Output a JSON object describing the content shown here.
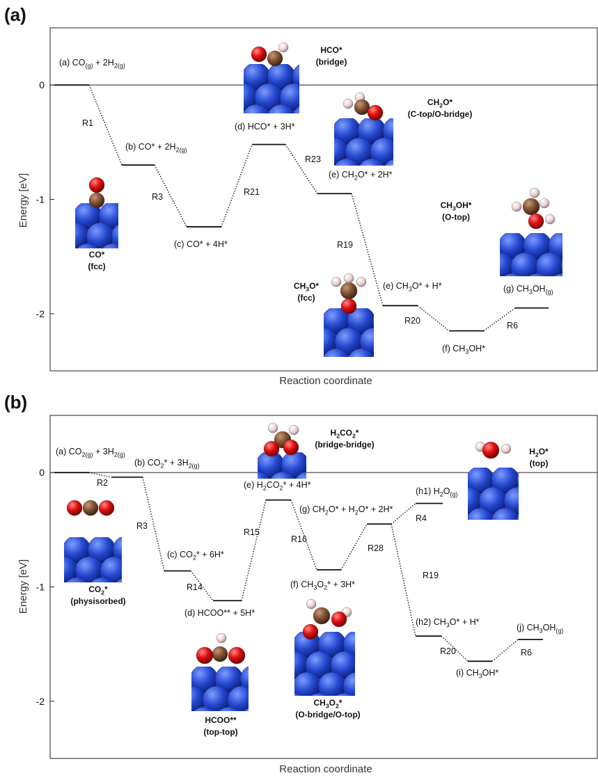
{
  "chart_data": [
    {
      "type": "energy-diagram",
      "title": "(a)",
      "y_label": "Energy [eV]",
      "x_label": "Reaction coordinate",
      "ylim": [
        -2.5,
        0.5
      ],
      "yticks": [
        -2,
        -1,
        0
      ],
      "levels": [
        {
          "label": [
            "(a) CO",
            {
              "sub": "(g)"
            },
            " + 2H",
            {
              "sub": "2(g)"
            }
          ],
          "value": 0
        },
        {
          "label": [
            "(b) CO* + 2H",
            {
              "sub": "2(g)"
            }
          ],
          "value": -0.7
        },
        {
          "label": [
            "(c) CO* + 4H*"
          ],
          "value": -1.24
        },
        {
          "label": [
            "(d) HCO* + 3H*"
          ],
          "value": -0.52
        },
        {
          "label": [
            "(e) CH",
            {
              "sub": "2"
            },
            "O* + 2H*"
          ],
          "value": -0.95
        },
        {
          "label": [
            "(e) CH",
            {
              "sub": "3"
            },
            "O* + H*"
          ],
          "value": -1.93
        },
        {
          "label": [
            "(f) CH",
            {
              "sub": "3"
            },
            "OH*"
          ],
          "value": -2.15
        },
        {
          "label": [
            "(g) CH",
            {
              "sub": "3"
            },
            "OH",
            {
              "sub": "(g)"
            }
          ],
          "value": -1.95
        }
      ],
      "steps": [
        {
          "from": 0,
          "to": 1,
          "label": "R1"
        },
        {
          "from": 1,
          "to": 2,
          "label": "R3"
        },
        {
          "from": 2,
          "to": 3,
          "label": "R21"
        },
        {
          "from": 3,
          "to": 4,
          "label": "R23"
        },
        {
          "from": 4,
          "to": 5,
          "label": "R19"
        },
        {
          "from": 5,
          "to": 6,
          "label": "R20"
        },
        {
          "from": 6,
          "to": 7,
          "label": "R6"
        }
      ],
      "structures": [
        {
          "name": [
            "CO*"
          ],
          "site": "(fcc)"
        },
        {
          "name": [
            "HCO*"
          ],
          "site": "(bridge)"
        },
        {
          "name": [
            "CH",
            {
              "sub": "2"
            },
            "O*"
          ],
          "site": "(C-top/O-bridge)"
        },
        {
          "name": [
            "CH",
            {
              "sub": "3"
            },
            "O*"
          ],
          "site": "(fcc)"
        },
        {
          "name": [
            "CH",
            {
              "sub": "3"
            },
            "OH*"
          ],
          "site": "(O-top)"
        }
      ]
    },
    {
      "type": "energy-diagram",
      "title": "(b)",
      "y_label": "Energy [eV]",
      "x_label": "Reaction coordinate",
      "ylim": [
        -2.5,
        0.5
      ],
      "yticks": [
        -2,
        -1,
        0
      ],
      "levels": [
        {
          "label": [
            "(a) CO",
            {
              "sub": "2(g)"
            },
            " + 3H",
            {
              "sub": "2(g)"
            }
          ],
          "value": 0
        },
        {
          "label": [
            "(b) CO",
            {
              "sub": "2"
            },
            "* + 3H",
            {
              "sub": "2(g)"
            }
          ],
          "value": -0.04
        },
        {
          "label": [
            "(c) CO",
            {
              "sub": "2"
            },
            "* + 6H*"
          ],
          "value": -0.86
        },
        {
          "label": [
            "(d) HCOO** + 5H*"
          ],
          "value": -1.12
        },
        {
          "label": [
            "(e) H",
            {
              "sub": "2"
            },
            "CO",
            {
              "sub": "2"
            },
            "* + 4H*"
          ],
          "value": -0.24
        },
        {
          "label": [
            "(f) CH",
            {
              "sub": "3"
            },
            "O",
            {
              "sub": "2"
            },
            "* + 3H*"
          ],
          "value": -0.85
        },
        {
          "label": [
            "(g) CH",
            {
              "sub": "2"
            },
            "O* + H",
            {
              "sub": "2"
            },
            "O* + 2H*"
          ],
          "value": -0.45
        },
        {
          "label": [
            "(h1) H",
            {
              "sub": "2"
            },
            "O",
            {
              "sub": "(g)"
            }
          ],
          "value": -0.27
        },
        {
          "label": [
            "(h2) CH",
            {
              "sub": "3"
            },
            "O* + H*"
          ],
          "value": -1.43
        },
        {
          "label": [
            "(i) CH",
            {
              "sub": "3"
            },
            "OH*"
          ],
          "value": -1.65
        },
        {
          "label": [
            "(j) CH",
            {
              "sub": "3"
            },
            "OH",
            {
              "sub": "(g)"
            }
          ],
          "value": -1.46
        }
      ],
      "steps": [
        {
          "from": 0,
          "to": 1,
          "label": "R2"
        },
        {
          "from": 1,
          "to": 2,
          "label": "R3"
        },
        {
          "from": 2,
          "to": 3,
          "label": "R14"
        },
        {
          "from": 3,
          "to": 4,
          "label": "R15"
        },
        {
          "from": 4,
          "to": 5,
          "label": "R16"
        },
        {
          "from": 5,
          "to": 6,
          "label": "R28"
        },
        {
          "from": 6,
          "to": 7,
          "label": "R4"
        },
        {
          "from": 6,
          "to": 8,
          "label": "R19"
        },
        {
          "from": 8,
          "to": 9,
          "label": "R20"
        },
        {
          "from": 9,
          "to": 10,
          "label": "R6"
        }
      ],
      "structures": [
        {
          "name": [
            "CO",
            {
              "sub": "2"
            },
            "*"
          ],
          "site": "(physisorbed)"
        },
        {
          "name": [
            "H",
            {
              "sub": "2"
            },
            "CO",
            {
              "sub": "2"
            },
            "*"
          ],
          "site": "(bridge-bridge)"
        },
        {
          "name": [
            "H",
            {
              "sub": "2"
            },
            "O*"
          ],
          "site": "(top)"
        },
        {
          "name": [
            "HCOO**"
          ],
          "site": "(top-top)"
        },
        {
          "name": [
            "CH",
            {
              "sub": "3"
            },
            "O",
            {
              "sub": "2"
            },
            "*"
          ],
          "site": "(O-bridge/O-top)"
        }
      ]
    }
  ]
}
